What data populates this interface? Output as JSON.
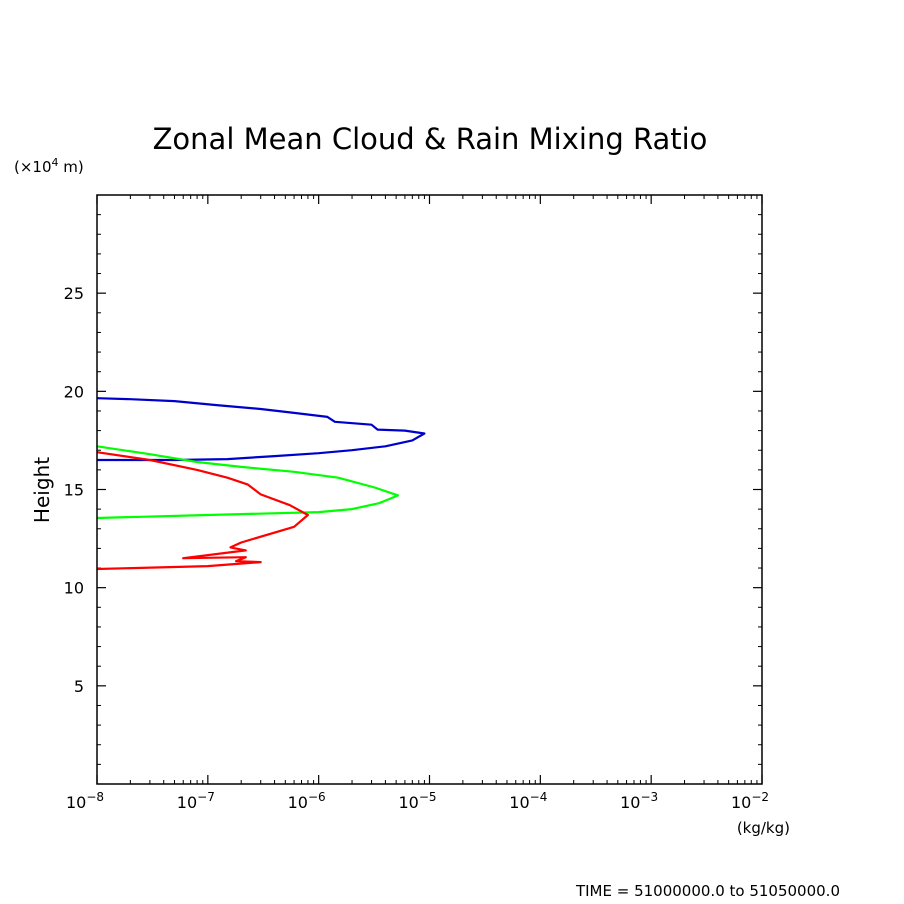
{
  "chart_data": {
    "type": "line",
    "title": "Zonal Mean Cloud & Rain Mixing Ratio",
    "ylabel": "Height",
    "yunit": "(×10⁴ m)",
    "xunit": "(kg/kg)",
    "footer": "TIME = 51000000.0 to 51050000.0",
    "x_scale": "log",
    "xlim": [
      1e-08,
      0.01
    ],
    "ylim": [
      0,
      30
    ],
    "x_tick_bases": [
      "10",
      "10",
      "10",
      "10",
      "10",
      "10",
      "10"
    ],
    "x_tick_exponents": [
      "−8",
      "−7",
      "−6",
      "−5",
      "−4",
      "−3",
      "−2"
    ],
    "y_ticks": [
      "5",
      "10",
      "15",
      "20",
      "25"
    ],
    "y_tick_values": [
      5,
      10,
      15,
      20,
      25
    ],
    "x_tick_values": [
      1e-08,
      1e-07,
      1e-06,
      1e-05,
      0.0001,
      0.001,
      0.01
    ],
    "series": [
      {
        "color": "#0000cc",
        "points": [
          [
            1e-08,
            19.65
          ],
          [
            2e-08,
            19.6
          ],
          [
            5e-08,
            19.5
          ],
          [
            1.2e-07,
            19.3
          ],
          [
            3e-07,
            19.1
          ],
          [
            6e-07,
            18.9
          ],
          [
            1.2e-06,
            18.7
          ],
          [
            1.4e-06,
            18.45
          ],
          [
            3e-06,
            18.3
          ],
          [
            3.4e-06,
            18.05
          ],
          [
            6e-06,
            18.0
          ],
          [
            9e-06,
            17.85
          ],
          [
            7e-06,
            17.5
          ],
          [
            4e-06,
            17.2
          ],
          [
            2e-06,
            17.0
          ],
          [
            1e-06,
            16.85
          ],
          [
            4e-07,
            16.7
          ],
          [
            1.5e-07,
            16.55
          ],
          [
            5e-08,
            16.5
          ],
          [
            1e-08,
            16.5
          ]
        ]
      },
      {
        "color": "#00ff00",
        "points": [
          [
            1e-08,
            17.2
          ],
          [
            3e-08,
            16.8
          ],
          [
            8e-08,
            16.4
          ],
          [
            2e-07,
            16.15
          ],
          [
            6e-07,
            15.9
          ],
          [
            1.5e-06,
            15.6
          ],
          [
            3.2e-06,
            15.1
          ],
          [
            5.2e-06,
            14.7
          ],
          [
            3.5e-06,
            14.3
          ],
          [
            2e-06,
            14.0
          ],
          [
            1e-06,
            13.85
          ],
          [
            1e-07,
            13.7
          ],
          [
            1e-08,
            13.55
          ]
        ]
      },
      {
        "color": "#ff0000",
        "points": [
          [
            1e-08,
            16.9
          ],
          [
            3e-08,
            16.5
          ],
          [
            8e-08,
            16.0
          ],
          [
            1.5e-07,
            15.6
          ],
          [
            2.3e-07,
            15.25
          ],
          [
            3e-07,
            14.75
          ],
          [
            5.5e-07,
            14.2
          ],
          [
            8e-07,
            13.7
          ],
          [
            6e-07,
            13.1
          ],
          [
            2e-07,
            12.3
          ],
          [
            1.6e-07,
            12.05
          ],
          [
            2.2e-07,
            11.9
          ],
          [
            6e-08,
            11.5
          ],
          [
            2.2e-07,
            11.55
          ],
          [
            1.8e-07,
            11.35
          ],
          [
            3e-07,
            11.3
          ],
          [
            1e-07,
            11.1
          ],
          [
            1e-08,
            10.95
          ]
        ]
      }
    ]
  }
}
